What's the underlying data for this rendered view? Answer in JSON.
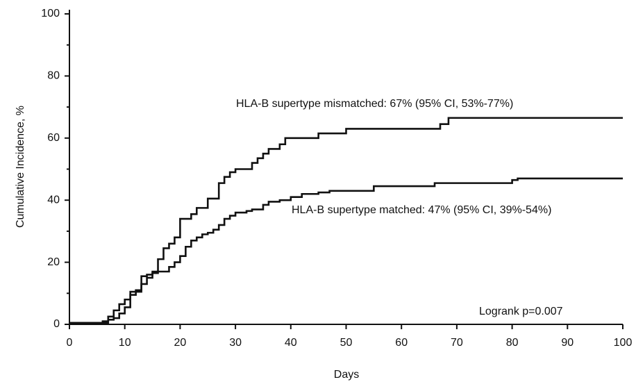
{
  "chart_data": {
    "type": "line",
    "step": true,
    "x_label": "Days",
    "y_label": "Cumulative Incidence, %",
    "annotations": [
      "Logrank p=0.007"
    ],
    "xlim": [
      0,
      100
    ],
    "xticks": [
      0,
      10,
      20,
      30,
      40,
      50,
      60,
      70,
      80,
      90,
      100
    ],
    "ylim": [
      0,
      100
    ],
    "yticks": [
      0,
      20,
      40,
      60,
      80,
      100
    ],
    "yminorticks": [
      10,
      30,
      50,
      70,
      90
    ],
    "grid": false,
    "series": [
      {
        "name": "HLA-B supertype mismatched: 67% (95% CI, 53%-77%)",
        "color": "#111111",
        "x": [
          0,
          6,
          7,
          8,
          9,
          10,
          11,
          12,
          13,
          14,
          15,
          16,
          17,
          18,
          19,
          20,
          22,
          23,
          25,
          27,
          28,
          29,
          30,
          33,
          34,
          35,
          36,
          38,
          39,
          45,
          50,
          67,
          68.5,
          100
        ],
        "values": [
          0.5,
          1,
          2.5,
          4.5,
          6.5,
          8,
          10.5,
          11,
          15.5,
          16,
          17,
          21,
          24.5,
          26,
          28,
          34,
          35.5,
          37.5,
          40.5,
          45.5,
          47.5,
          49,
          50,
          52,
          53.5,
          55,
          56.5,
          58,
          60,
          61.5,
          63,
          64.5,
          66.5,
          66.5
        ]
      },
      {
        "name": "HLA-B supertype matched: 47% (95% CI, 39%-54%)",
        "color": "#111111",
        "x": [
          0,
          7,
          8,
          9,
          10,
          11,
          12,
          13,
          14,
          15,
          16,
          18,
          19,
          20,
          21,
          22,
          23,
          24,
          25,
          26,
          27,
          28,
          29,
          30,
          32,
          33,
          35,
          36,
          38,
          40,
          42,
          45,
          47,
          55,
          66,
          80,
          81,
          100
        ],
        "values": [
          0.5,
          1.5,
          2,
          3.5,
          5.5,
          9.5,
          10.5,
          13,
          15,
          16.5,
          17,
          18.5,
          20,
          22,
          25,
          27,
          28,
          29,
          29.5,
          30.5,
          32,
          34,
          35,
          36,
          36.5,
          37,
          38.5,
          39.5,
          40,
          41,
          42,
          42.5,
          43,
          44.5,
          45.5,
          46.5,
          47,
          47
        ]
      }
    ]
  }
}
